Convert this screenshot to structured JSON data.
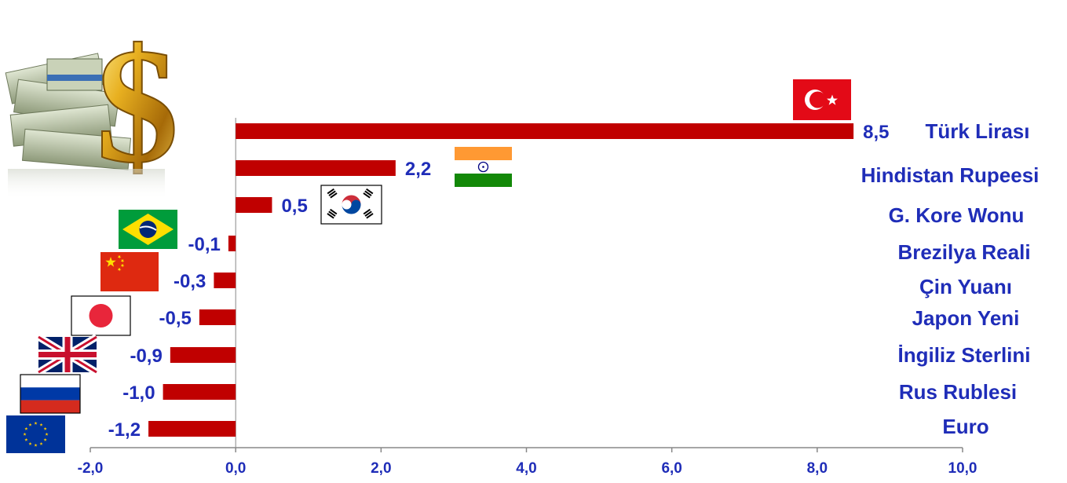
{
  "chart_data": {
    "type": "bar",
    "orientation": "horizontal",
    "categories": [
      "Türk Lirası",
      "Hindistan Rupeesi",
      "G. Kore Wonu",
      "Brezilya Reali",
      "Çin Yuanı",
      "Japon Yeni",
      "İngiliz Sterlini",
      "Rus Rublesi",
      "Euro"
    ],
    "values": [
      8.5,
      2.2,
      0.5,
      -0.1,
      -0.3,
      -0.5,
      -0.9,
      -1.0,
      -1.2
    ],
    "value_labels": [
      "8,5",
      "2,2",
      "0,5",
      "-0,1",
      "-0,3",
      "-0,5",
      "-0,9",
      "-1,0",
      "-1,2"
    ],
    "flags": [
      "turkey-flag",
      "india-flag",
      "south-korea-flag",
      "brazil-flag",
      "china-flag",
      "japan-flag",
      "uk-flag",
      "russia-flag",
      "eu-flag"
    ],
    "xlim": [
      -2.0,
      10.0
    ],
    "xticks": [
      -2.0,
      0.0,
      2.0,
      4.0,
      6.0,
      8.0,
      10.0
    ],
    "xtick_labels": [
      "-2,0",
      "0,0",
      "2,0",
      "4,0",
      "6,0",
      "8,0",
      "10,0"
    ],
    "grid": false,
    "colors": {
      "bar": "#c00000",
      "text": "#1f2db8"
    }
  },
  "decoration": {
    "image": "money-dollar-sign-icon"
  }
}
